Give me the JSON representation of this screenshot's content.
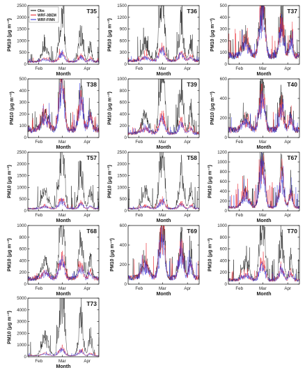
{
  "chart_data": {
    "type": "line",
    "series_colors": {
      "Obs": "#000000",
      "WRF-3BEM": "#e8202a",
      "WRF-FINN": "#2a2ad8"
    },
    "legend": [
      "Obs",
      "WRF-3BEM",
      "WRF-FINN"
    ],
    "legend_placement": "top-left of first panel",
    "xlabel": "Month",
    "ylabel": "PM10 (μg m⁻³)",
    "month_ticks": [
      "Feb",
      "Mar",
      "Apr"
    ],
    "panels": [
      {
        "name": "T35",
        "ylim": [
          0,
          2500
        ],
        "yticks": [
          0,
          500,
          1000,
          1500,
          2000,
          2500
        ],
        "obs_peak": 1600,
        "model_peak": 400,
        "base": 180
      },
      {
        "name": "T36",
        "ylim": [
          0,
          1500
        ],
        "yticks": [
          0,
          300,
          600,
          900,
          1200,
          1500
        ],
        "obs_peak": 1300,
        "model_peak": 350,
        "base": 150
      },
      {
        "name": "T37",
        "ylim": [
          0,
          500
        ],
        "yticks": [
          0,
          100,
          200,
          300,
          400,
          500
        ],
        "obs_peak": 420,
        "model_peak": 480,
        "base": 120
      },
      {
        "name": "T38",
        "ylim": [
          0,
          500
        ],
        "yticks": [
          0,
          100,
          200,
          300,
          400,
          500
        ],
        "obs_peak": 420,
        "model_peak": 430,
        "base": 110
      },
      {
        "name": "T39",
        "ylim": [
          0,
          1000
        ],
        "yticks": [
          0,
          200,
          400,
          600,
          800,
          1000
        ],
        "obs_peak": 950,
        "model_peak": 320,
        "base": 120
      },
      {
        "name": "T40",
        "ylim": [
          0,
          600
        ],
        "yticks": [
          0,
          200,
          400,
          600
        ],
        "obs_peak": 420,
        "model_peak": 400,
        "base": 130
      },
      {
        "name": "T57",
        "ylim": [
          0,
          2500
        ],
        "yticks": [
          0,
          500,
          1000,
          1500,
          2000,
          2500
        ],
        "obs_peak": 2100,
        "model_peak": 400,
        "base": 150
      },
      {
        "name": "T58",
        "ylim": [
          0,
          2500
        ],
        "yticks": [
          0,
          500,
          1000,
          1500,
          2000,
          2500
        ],
        "obs_peak": 2100,
        "model_peak": 400,
        "base": 160
      },
      {
        "name": "T67",
        "ylim": [
          0,
          1200
        ],
        "yticks": [
          0,
          200,
          400,
          600,
          800,
          1000,
          1200
        ],
        "obs_peak": 900,
        "model_peak": 1100,
        "base": 120
      },
      {
        "name": "T68",
        "ylim": [
          0,
          1000
        ],
        "yticks": [
          0,
          200,
          400,
          600,
          800,
          1000
        ],
        "obs_peak": 900,
        "model_peak": 380,
        "base": 160
      },
      {
        "name": "T69",
        "ylim": [
          0,
          600
        ],
        "yticks": [
          0,
          200,
          400,
          600
        ],
        "obs_peak": 500,
        "model_peak": 530,
        "base": 110
      },
      {
        "name": "T70",
        "ylim": [
          0,
          1000
        ],
        "yticks": [
          0,
          200,
          400,
          600,
          800,
          1000
        ],
        "obs_peak": 880,
        "model_peak": 330,
        "base": 120
      },
      {
        "name": "T73",
        "ylim": [
          0,
          5000
        ],
        "yticks": [
          0,
          1000,
          2000,
          3000,
          4000,
          5000
        ],
        "obs_peak": 4600,
        "model_peak": 700,
        "base": 150
      }
    ]
  }
}
